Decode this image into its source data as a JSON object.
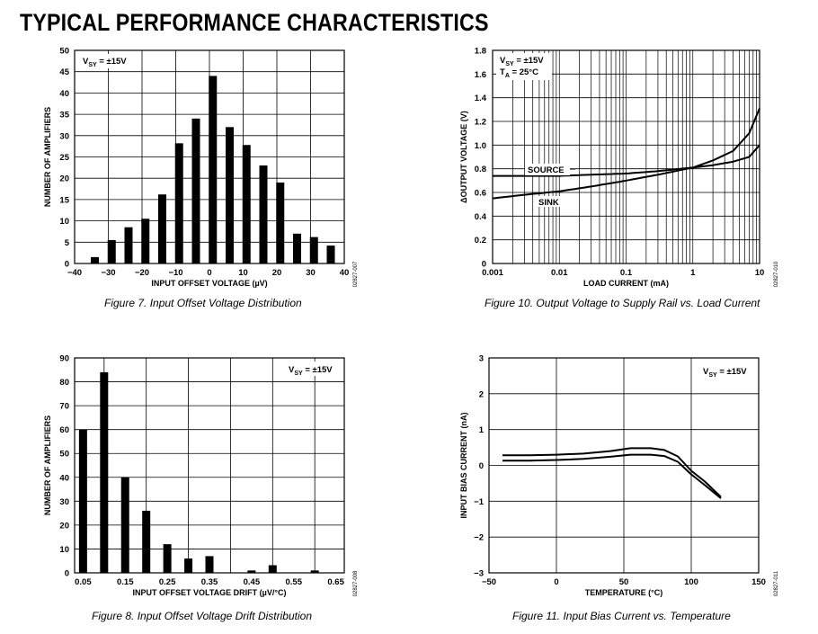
{
  "page": {
    "title": "TYPICAL PERFORMANCE CHARACTERISTICS"
  },
  "chart_data": [
    {
      "id": "fig7",
      "type": "bar",
      "caption": "Figure 7. Input Offset Voltage Distribution",
      "code": "02827-007",
      "annotation": "V_SY = ±15V",
      "xlabel": "INPUT OFFSET VOLTAGE (µV)",
      "ylabel": "NUMBER OF AMPLIFIERS",
      "xlim": [
        -40,
        40
      ],
      "ylim": [
        0,
        50
      ],
      "xticks": [
        -40,
        -30,
        -20,
        -10,
        0,
        10,
        20,
        30,
        40
      ],
      "xtick_labels": [
        "−40",
        "−30",
        "−20",
        "−10",
        "0",
        "10",
        "20",
        "30",
        "40"
      ],
      "yticks": [
        0,
        5,
        10,
        15,
        20,
        25,
        30,
        35,
        40,
        45,
        50
      ],
      "grid": true,
      "x": [
        -34,
        -29,
        -24,
        -19,
        -14,
        -9,
        -4,
        1,
        6,
        11,
        16,
        21,
        26,
        31,
        36
      ],
      "values": [
        1.5,
        5.5,
        8.5,
        10.5,
        16.2,
        28.2,
        34,
        44,
        32,
        27.8,
        23,
        19,
        7,
        6.2,
        4.2
      ]
    },
    {
      "id": "fig10",
      "type": "line",
      "caption": "Figure 10. Output Voltage to Supply Rail vs. Load Current",
      "code": "02827-010",
      "annotation_lines": [
        "V_SY = ±15V",
        "T_A = 25°C"
      ],
      "xlabel": "LOAD CURRENT (mA)",
      "ylabel": "ΔOUTPUT VOLTAGE (V)",
      "xscale": "log",
      "xlim": [
        0.001,
        10
      ],
      "ylim": [
        0,
        1.8
      ],
      "xticks": [
        0.001,
        0.01,
        0.1,
        1,
        10
      ],
      "xtick_labels": [
        "0.001",
        "0.01",
        "0.1",
        "1",
        "10"
      ],
      "yticks": [
        0,
        0.2,
        0.4,
        0.6,
        0.8,
        1.0,
        1.2,
        1.4,
        1.6,
        1.8
      ],
      "ytick_labels": [
        "0",
        "0.2",
        "0.4",
        "0.6",
        "0.8",
        "1.0",
        "1.2",
        "1.4",
        "1.6",
        "1.8"
      ],
      "grid": true,
      "series": [
        {
          "name": "SOURCE",
          "x": [
            0.001,
            0.003,
            0.01,
            0.03,
            0.1,
            0.3,
            1,
            2,
            4,
            7,
            10
          ],
          "y": [
            0.74,
            0.74,
            0.74,
            0.75,
            0.76,
            0.78,
            0.81,
            0.83,
            0.86,
            0.9,
            1.0
          ]
        },
        {
          "name": "SINK",
          "x": [
            0.001,
            0.003,
            0.01,
            0.03,
            0.1,
            0.3,
            1,
            2,
            4,
            7,
            10
          ],
          "y": [
            0.55,
            0.58,
            0.61,
            0.65,
            0.7,
            0.75,
            0.81,
            0.87,
            0.95,
            1.1,
            1.31
          ]
        }
      ]
    },
    {
      "id": "fig8",
      "type": "bar",
      "caption": "Figure 8. Input Offset Voltage Drift Distribution",
      "code": "02827-008",
      "annotation": "V_SY = ±15V",
      "xlabel": "INPUT OFFSET VOLTAGE DRIFT (µV/°C)",
      "ylabel": "NUMBER OF AMPLIFIERS",
      "xlim": [
        0.03,
        0.67
      ],
      "ylim": [
        0,
        90
      ],
      "xticks": [
        0.05,
        0.15,
        0.25,
        0.35,
        0.45,
        0.55,
        0.65
      ],
      "xtick_labels": [
        "0.05",
        "0.15",
        "0.25",
        "0.35",
        "0.45",
        "0.55",
        "0.65"
      ],
      "yticks": [
        0,
        10,
        20,
        30,
        40,
        50,
        60,
        70,
        80,
        90
      ],
      "grid": true,
      "x": [
        0.05,
        0.1,
        0.15,
        0.2,
        0.25,
        0.3,
        0.35,
        0.45,
        0.5,
        0.6
      ],
      "values": [
        60,
        84,
        40,
        26,
        12,
        6,
        7,
        1,
        3.2,
        1
      ]
    },
    {
      "id": "fig11",
      "type": "line",
      "caption": "Figure 11. Input Bias Current vs. Temperature",
      "code": "02827-011",
      "annotation": "V_SY = ±15V",
      "xlabel": "TEMPERATURE (°C)",
      "ylabel": "INPUT BIAS CURRENT (nA)",
      "xlim": [
        -50,
        150
      ],
      "ylim": [
        -3,
        3
      ],
      "xticks": [
        -50,
        0,
        50,
        100,
        150
      ],
      "xtick_labels": [
        "−50",
        "0",
        "50",
        "100",
        "150"
      ],
      "yticks": [
        -3,
        -2,
        -1,
        0,
        1,
        2,
        3
      ],
      "ytick_labels": [
        "−3",
        "−2",
        "−1",
        "0",
        "1",
        "2",
        "3"
      ],
      "grid": true,
      "series": [
        {
          "x": [
            -40,
            -20,
            0,
            20,
            40,
            55,
            70,
            80,
            90,
            100,
            110,
            122
          ],
          "y": [
            0.28,
            0.28,
            0.3,
            0.33,
            0.4,
            0.48,
            0.48,
            0.43,
            0.25,
            -0.15,
            -0.45,
            -0.88
          ]
        },
        {
          "x": [
            -40,
            -20,
            0,
            20,
            40,
            55,
            70,
            80,
            90,
            100,
            110,
            122
          ],
          "y": [
            0.13,
            0.13,
            0.15,
            0.18,
            0.24,
            0.3,
            0.3,
            0.26,
            0.1,
            -0.25,
            -0.55,
            -0.92
          ]
        }
      ]
    }
  ]
}
